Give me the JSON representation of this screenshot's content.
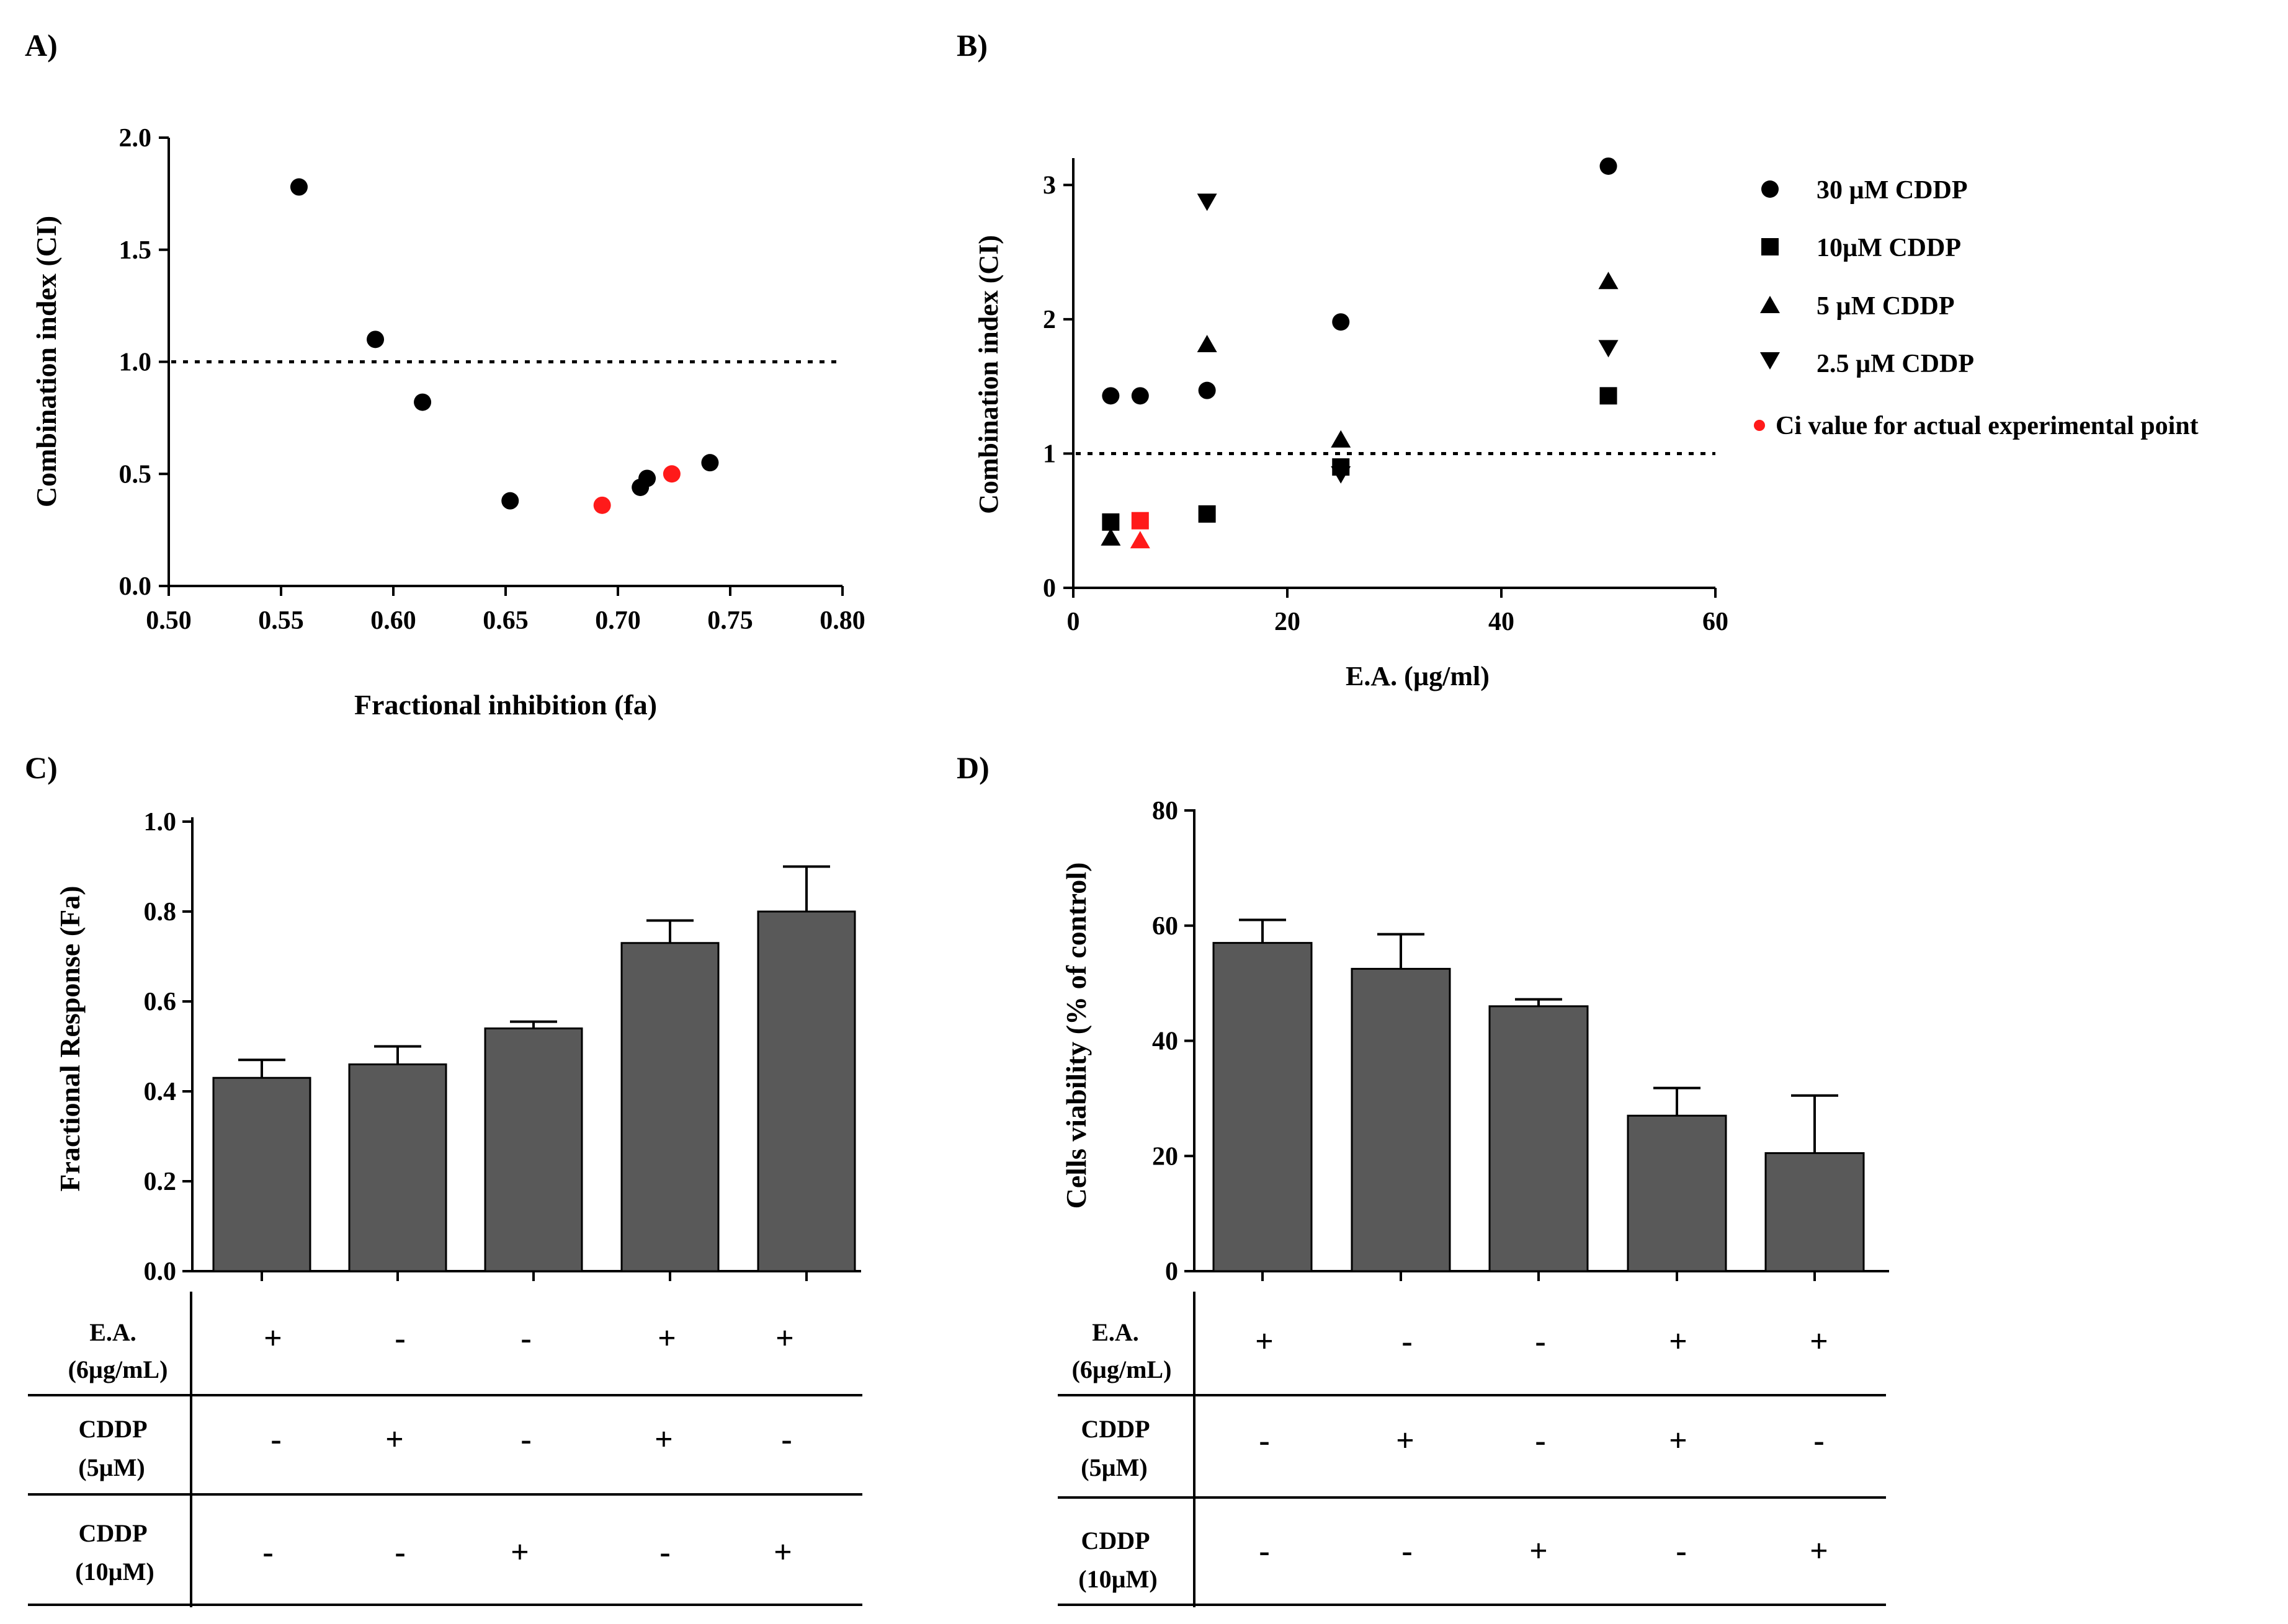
{
  "colors": {
    "ink": "#000000",
    "red": "#ff1a1a",
    "bar": "#595959"
  },
  "chart_data": [
    {
      "panel": "A)",
      "type": "scatter",
      "xlabel": "Fractional inhibition (fa)",
      "ylabel": "Combination index (CI)",
      "xlim": [
        0.5,
        0.8
      ],
      "ylim": [
        0.0,
        2.0
      ],
      "xticks": [
        "0.50",
        "0.55",
        "0.60",
        "0.65",
        "0.70",
        "0.75",
        "0.80"
      ],
      "yticks": [
        "0.0",
        "0.5",
        "1.0",
        "1.5",
        "2.0"
      ],
      "reference_line": 1.0,
      "series": [
        {
          "name": "CI",
          "color": "#000000",
          "points": [
            [
              0.558,
              1.78
            ],
            [
              0.592,
              1.1
            ],
            [
              0.613,
              0.82
            ],
            [
              0.652,
              0.38
            ],
            [
              0.71,
              0.44
            ],
            [
              0.713,
              0.48
            ],
            [
              0.741,
              0.55
            ]
          ]
        },
        {
          "name": "Ci value for actual experimental point",
          "color": "#ff1a1a",
          "points": [
            [
              0.693,
              0.36
            ],
            [
              0.724,
              0.5
            ]
          ]
        }
      ]
    },
    {
      "panel": "B)",
      "type": "scatter",
      "xlabel": "E.A. (µg/ml)",
      "ylabel": "Combination index (CI)",
      "xlim": [
        0,
        60
      ],
      "ylim": [
        0,
        3.2
      ],
      "xticks": [
        "0",
        "20",
        "40",
        "60"
      ],
      "yticks": [
        "0",
        "1",
        "2",
        "3"
      ],
      "reference_line": 1.0,
      "series": [
        {
          "name": "30 µM CDDP",
          "marker": "circle",
          "points": [
            [
              3.5,
              1.43
            ],
            [
              6.25,
              1.43
            ],
            [
              12.5,
              1.47
            ],
            [
              25,
              1.98
            ],
            [
              50,
              3.14
            ]
          ]
        },
        {
          "name": "10µM CDDP",
          "marker": "square",
          "points": [
            [
              3.5,
              0.49
            ],
            [
              12.5,
              0.55
            ],
            [
              25,
              0.9
            ],
            [
              50,
              1.43
            ]
          ]
        },
        {
          "name": "5 µM CDDP",
          "marker": "triangle-up",
          "points": [
            [
              3.5,
              0.37
            ],
            [
              12.5,
              1.81
            ],
            [
              25,
              1.1
            ],
            [
              50,
              2.28
            ]
          ]
        },
        {
          "name": "2.5 µM CDDP",
          "marker": "triangle-down",
          "points": [
            [
              12.5,
              2.88
            ],
            [
              25,
              0.85
            ],
            [
              50,
              1.79
            ]
          ]
        },
        {
          "name": "Ci value for actual experimental point",
          "marker": "dot",
          "color": "#ff1a1a",
          "points": [
            [
              6.25,
              0.5,
              "square"
            ],
            [
              6.25,
              0.35,
              "triangle-up"
            ]
          ]
        }
      ]
    },
    {
      "panel": "C)",
      "type": "bar",
      "ylabel": "Fractional  Response (Fa)",
      "ylim": [
        0.0,
        1.0
      ],
      "yticks": [
        "0.0",
        "0.2",
        "0.4",
        "0.6",
        "0.8",
        "1.0"
      ],
      "values": [
        0.43,
        0.46,
        0.54,
        0.73,
        0.8
      ],
      "errors": [
        0.04,
        0.04,
        0.015,
        0.05,
        0.1
      ],
      "table": {
        "row_labels": [
          [
            "E.A.",
            "(6µg/mL)"
          ],
          [
            "CDDP",
            "(5µM)"
          ],
          [
            "CDDP",
            "(10µM)"
          ]
        ],
        "rows": [
          [
            "+",
            "-",
            "-",
            "+",
            "+"
          ],
          [
            "-",
            "+",
            "-",
            "+",
            "-"
          ],
          [
            "-",
            "-",
            "+",
            "-",
            "+"
          ]
        ]
      }
    },
    {
      "panel": "D)",
      "type": "bar",
      "ylabel": "Cells viability (% of control)",
      "ylim": [
        0,
        80
      ],
      "yticks": [
        "0",
        "20",
        "40",
        "60",
        "80"
      ],
      "values": [
        57,
        52.5,
        46,
        27,
        20.5
      ],
      "errors": [
        4,
        6,
        1.2,
        4.8,
        10
      ],
      "table": {
        "row_labels": [
          [
            "E.A.",
            "(6µg/mL)"
          ],
          [
            "CDDP",
            "(5µM)"
          ],
          [
            "CDDP",
            "(10µM)"
          ]
        ],
        "rows": [
          [
            "+",
            "-",
            "-",
            "+",
            "+"
          ],
          [
            "-",
            "+",
            "-",
            "+",
            "-"
          ],
          [
            "-",
            "-",
            "+",
            "-",
            "+"
          ]
        ]
      }
    }
  ]
}
